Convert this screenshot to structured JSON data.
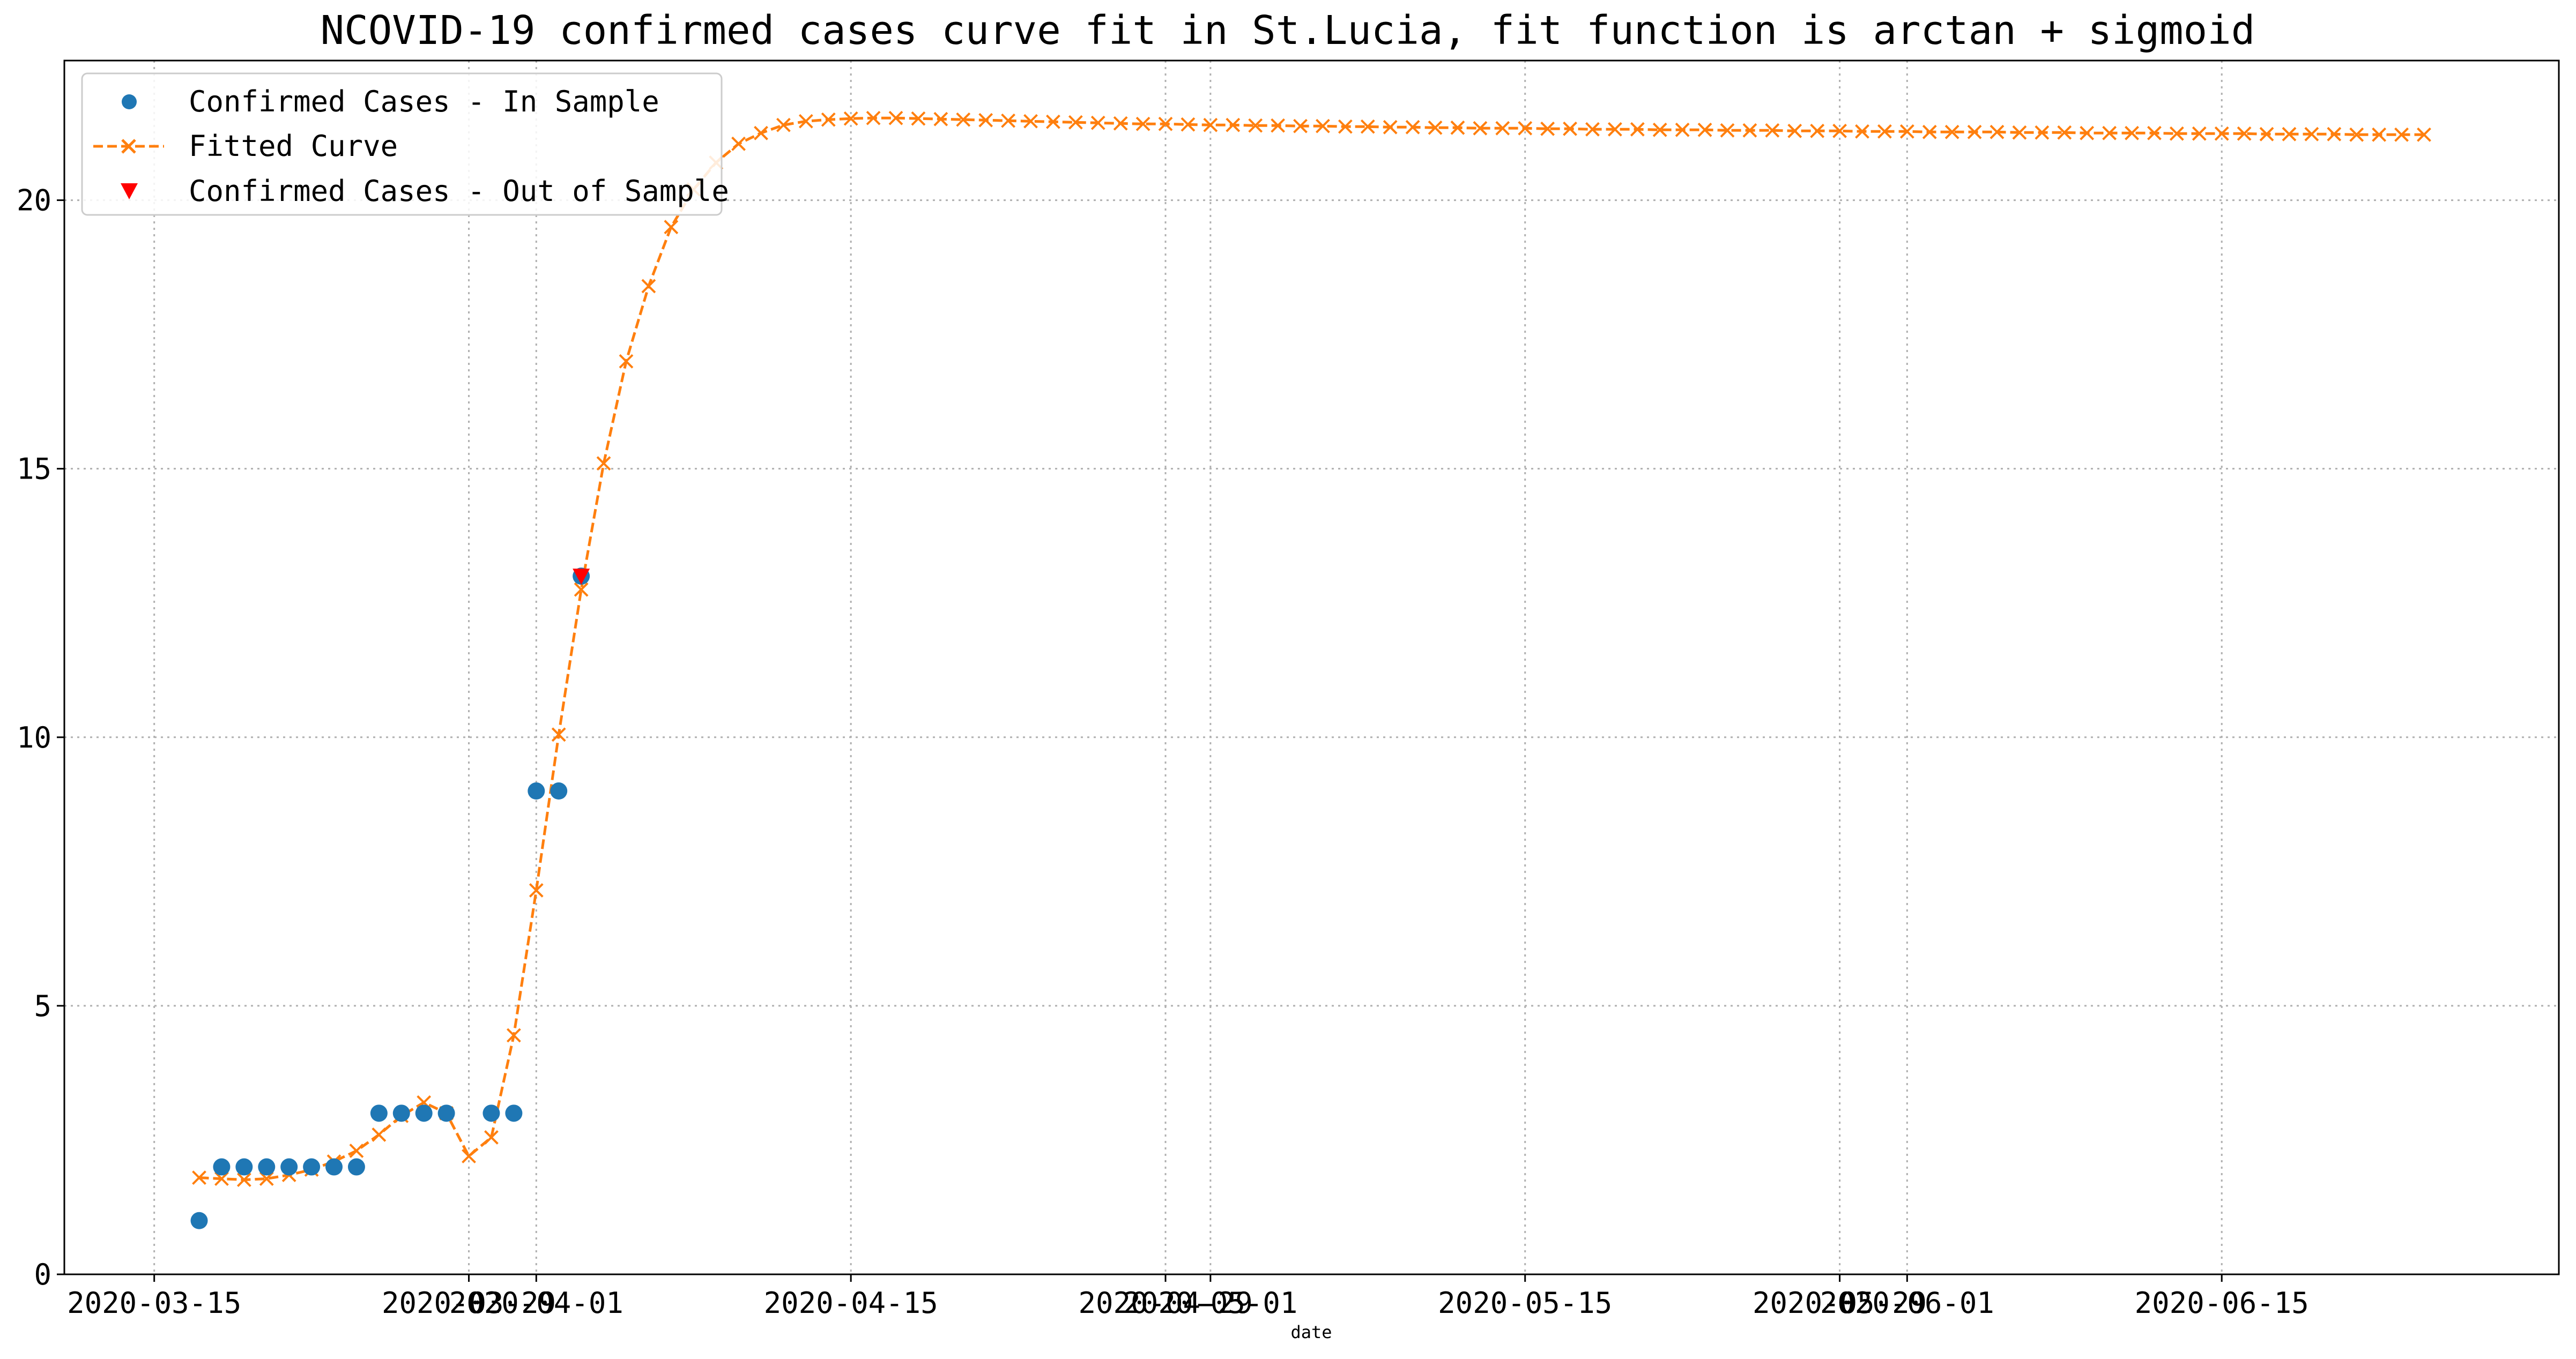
{
  "chart_data": {
    "type": "line",
    "title": "NCOVID-19 confirmed cases curve fit in St.Lucia, fit function is arctan + sigmoid",
    "xlabel": "date",
    "ylabel": "",
    "x_type": "date",
    "xlim": [
      "2020-03-11",
      "2020-06-30"
    ],
    "ylim": [
      0,
      22.6
    ],
    "grid": true,
    "legend_position": "top-left",
    "x_tick_labels": [
      {
        "date": "2020-03-15",
        "label": "2020-03-15"
      },
      {
        "date": "2020-03-29",
        "label": "2020-03-29"
      },
      {
        "date": "2020-04-01",
        "label": "2020-04-01"
      },
      {
        "date": "2020-04-15",
        "label": "2020-04-15"
      },
      {
        "date": "2020-04-29",
        "label": "2020-04-29"
      },
      {
        "date": "2020-05-01",
        "label": "2020-05-01"
      },
      {
        "date": "2020-05-15",
        "label": "2020-05-15"
      },
      {
        "date": "2020-05-29",
        "label": "2020-05-29"
      },
      {
        "date": "2020-06-01",
        "label": "2020-06-01"
      },
      {
        "date": "2020-06-15",
        "label": "2020-06-15"
      }
    ],
    "y_ticks": [
      0,
      5,
      10,
      15,
      20
    ],
    "series": [
      {
        "name": "Confirmed Cases - In Sample",
        "marker": "circle",
        "color": "#1f77b4",
        "start_date": "2020-03-17",
        "values": [
          1,
          2,
          2,
          2,
          2,
          2,
          2,
          2,
          3,
          3,
          3,
          3,
          null,
          3,
          3,
          9,
          9,
          13
        ]
      },
      {
        "name": "Fitted Curve",
        "marker": "x",
        "line": "dashed",
        "color": "#ff7f0e",
        "start_date": "2020-03-17",
        "values": [
          1.8,
          1.78,
          1.76,
          1.78,
          1.85,
          1.95,
          2.1,
          2.3,
          2.6,
          2.95,
          3.2,
          3.0,
          2.2,
          2.55,
          4.45,
          7.15,
          10.05,
          12.75,
          15.1,
          17.0,
          18.4,
          19.5,
          20.2,
          20.7,
          21.05,
          21.25,
          21.4,
          21.47,
          21.5,
          21.52,
          21.53,
          21.53,
          21.52,
          21.51,
          21.5,
          21.49,
          21.48,
          21.47,
          21.46,
          21.45,
          21.44,
          21.43,
          21.42,
          21.42,
          21.41,
          21.4,
          21.4,
          21.39,
          21.39,
          21.38,
          21.38,
          21.37,
          21.37,
          21.36,
          21.36,
          21.35,
          21.35,
          21.34,
          21.34,
          21.34,
          21.33,
          21.33,
          21.32,
          21.32,
          21.32,
          21.31,
          21.31,
          21.31,
          21.3,
          21.3,
          21.3,
          21.29,
          21.29,
          21.29,
          21.28,
          21.28,
          21.28,
          21.27,
          21.27,
          21.27,
          21.27,
          21.26,
          21.26,
          21.26,
          21.25,
          21.25,
          21.25,
          21.25,
          21.24,
          21.24,
          21.24,
          21.24,
          21.23,
          21.23,
          21.23,
          21.23,
          21.22,
          21.22,
          21.22,
          21.22
        ]
      },
      {
        "name": "Confirmed Cases - Out of Sample",
        "marker": "triangle-down",
        "color": "#ff0000",
        "start_date": "2020-04-03",
        "values": [
          13
        ]
      }
    ]
  }
}
